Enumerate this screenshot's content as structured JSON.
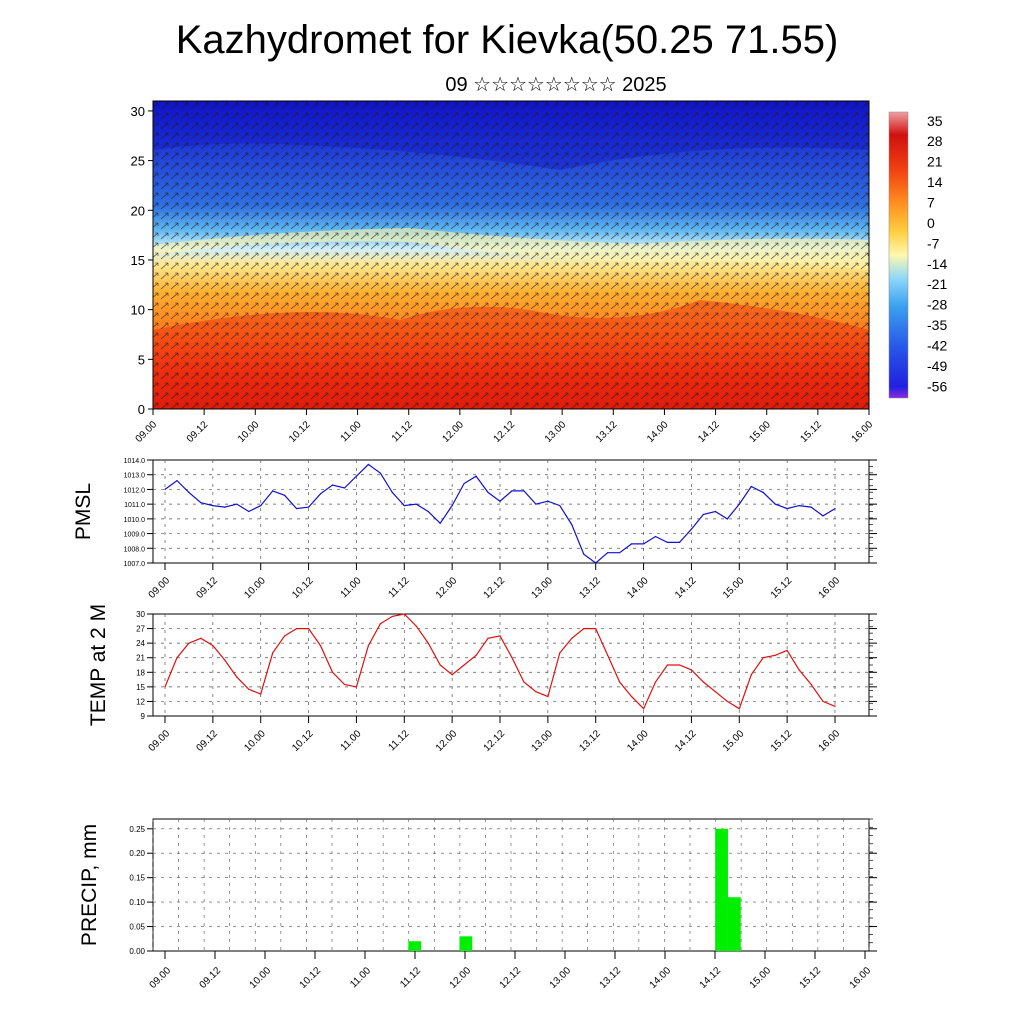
{
  "title": "Kazhydromet for Kievka(50.25 71.55)",
  "subtitle": "09 ☆☆☆☆☆☆☆☆ 2025",
  "time_labels": [
    "09.00",
    "09.12",
    "10.00",
    "10.12",
    "11.00",
    "11.12",
    "12.00",
    "12.12",
    "13.00",
    "13.12",
    "14.00",
    "14.12",
    "15.00",
    "15.12",
    "16.00"
  ],
  "chart_data": [
    {
      "type": "heatmap",
      "name": "cross-section",
      "y_ticks": [
        0,
        5,
        10,
        15,
        20,
        25,
        30
      ],
      "ylim": [
        0,
        31
      ],
      "colorbar": {
        "labels": [
          "35",
          "28",
          "21",
          "14",
          "7",
          "0",
          "-7",
          "-14",
          "-21",
          "-28",
          "-35",
          "-42",
          "-49",
          "-56"
        ],
        "range": [
          -60,
          38
        ]
      },
      "colors": {
        "hot": "#e01010",
        "warm": "#ffa020",
        "neutral": "#fff0a0",
        "cool": "#60c8f0",
        "cold": "#2040e0",
        "coldest": "#1010d0"
      }
    },
    {
      "type": "line",
      "ylabel": "PMSL",
      "ylim": [
        1007.0,
        1014.0
      ],
      "y_ticks": [
        "1014.0",
        "1013.0",
        "1012.0",
        "1011.0",
        "1010.0",
        "1009.0",
        "1008.0",
        "1007.0"
      ],
      "color": "#1010d0",
      "values": [
        1012.0,
        1012.6,
        1011.8,
        1011.1,
        1010.9,
        1010.8,
        1011.0,
        1010.5,
        1010.9,
        1011.9,
        1011.6,
        1010.7,
        1010.8,
        1011.7,
        1012.3,
        1012.1,
        1012.9,
        1013.7,
        1013.1,
        1011.8,
        1010.9,
        1011.0,
        1010.5,
        1009.7,
        1010.9,
        1012.4,
        1012.9,
        1011.8,
        1011.2,
        1011.9,
        1011.9,
        1011.0,
        1011.2,
        1010.9,
        1009.6,
        1007.6,
        1007.0,
        1007.7,
        1007.7,
        1008.3,
        1008.3,
        1008.8,
        1008.4,
        1008.4,
        1009.3,
        1010.3,
        1010.5,
        1010.0,
        1011.0,
        1012.2,
        1011.8,
        1011.0,
        1010.7,
        1010.9,
        1010.8,
        1010.2,
        1010.7
      ]
    },
    {
      "type": "line",
      "ylabel": "TEMP at 2 M",
      "ylim": [
        9,
        30
      ],
      "y_ticks": [
        "30",
        "27",
        "24",
        "21",
        "18",
        "15",
        "12",
        "9"
      ],
      "color": "#e01010",
      "values": [
        15.0,
        21.0,
        24.0,
        25.0,
        23.5,
        20.5,
        17.0,
        14.5,
        13.5,
        22.0,
        25.5,
        27.0,
        27.0,
        23.5,
        18.0,
        15.5,
        15.0,
        23.5,
        28.0,
        29.5,
        30.0,
        27.5,
        24.0,
        19.5,
        17.5,
        19.5,
        21.5,
        25.0,
        25.5,
        21.0,
        16.0,
        14.0,
        13.0,
        22.0,
        25.0,
        27.0,
        27.0,
        21.5,
        16.0,
        13.0,
        10.5,
        16.0,
        19.5,
        19.5,
        18.5,
        16.0,
        14.0,
        12.0,
        10.5,
        17.5,
        21.0,
        21.5,
        22.5,
        18.5,
        15.5,
        12.0,
        11.0
      ]
    },
    {
      "type": "bar",
      "ylabel": "PRECIP, mm",
      "ylim": [
        0,
        0.27
      ],
      "y_ticks": [
        "0.25",
        "0.20",
        "0.15",
        "0.10",
        "0.05",
        "0.00"
      ],
      "color": "#00ee00",
      "bars": [
        {
          "x": 11.5,
          "value": 0.02
        },
        {
          "x": 12.0,
          "value": 0.03
        },
        {
          "x": 14.5,
          "value": 0.25
        },
        {
          "x": 14.625,
          "value": 0.11
        }
      ]
    }
  ]
}
